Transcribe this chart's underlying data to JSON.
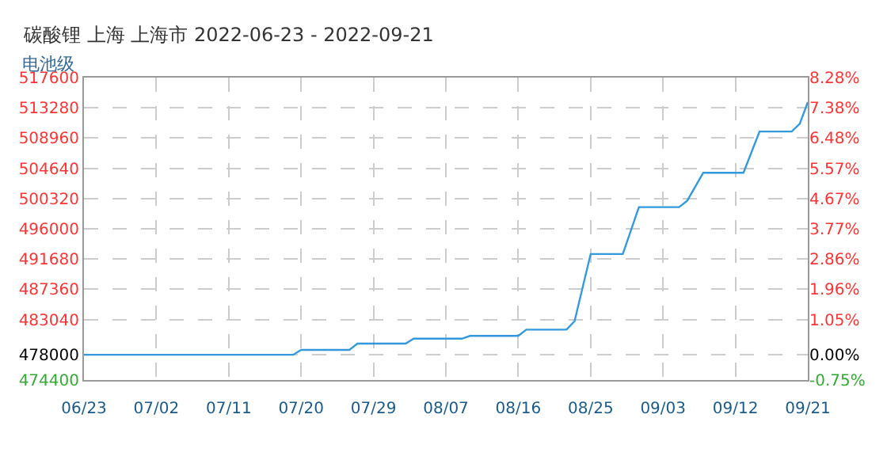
{
  "chart_data": {
    "type": "line",
    "title": "碳酸锂 上海 上海市 2022-06-23 - 2022-09-21",
    "subtitle": "电池级",
    "x": [
      "2022-06-23",
      "2022-07-19",
      "2022-07-20",
      "2022-07-26",
      "2022-07-27",
      "2022-08-02",
      "2022-08-03",
      "2022-08-09",
      "2022-08-10",
      "2022-08-16",
      "2022-08-17",
      "2022-08-22",
      "2022-08-23",
      "2022-08-25",
      "2022-08-29",
      "2022-08-31",
      "2022-09-05",
      "2022-09-06",
      "2022-09-08",
      "2022-09-13",
      "2022-09-15",
      "2022-09-19",
      "2022-09-20",
      "2022-09-21"
    ],
    "values": [
      478000,
      478000,
      478700,
      478700,
      479600,
      479600,
      480300,
      480300,
      480700,
      480700,
      481600,
      481600,
      482800,
      492400,
      492400,
      499100,
      499100,
      500000,
      504000,
      504000,
      509900,
      509900,
      511000,
      514100
    ],
    "color": "#3399dd",
    "xlim": [
      "2022-06-23",
      "2022-09-21"
    ],
    "xticks": [
      {
        "value": "2022-06-23",
        "label": "06/23"
      },
      {
        "value": "2022-07-02",
        "label": "07/02"
      },
      {
        "value": "2022-07-11",
        "label": "07/11"
      },
      {
        "value": "2022-07-20",
        "label": "07/20"
      },
      {
        "value": "2022-07-29",
        "label": "07/29"
      },
      {
        "value": "2022-08-07",
        "label": "08/07"
      },
      {
        "value": "2022-08-16",
        "label": "08/16"
      },
      {
        "value": "2022-08-25",
        "label": "08/25"
      },
      {
        "value": "2022-09-03",
        "label": "09/03"
      },
      {
        "value": "2022-09-12",
        "label": "09/12"
      },
      {
        "value": "2022-09-21",
        "label": "09/21"
      }
    ],
    "ylim": [
      474400,
      517600
    ],
    "yticks": [
      474400,
      478000,
      483040,
      487360,
      491680,
      496000,
      500320,
      504640,
      508960,
      513280,
      517600
    ],
    "y2lim": [
      -0.753,
      8.284
    ],
    "y2ticks": [
      {
        "value": -0.75,
        "label": "-0.75%"
      },
      {
        "value": 0,
        "label": "0.00%"
      },
      {
        "value": 1.05,
        "label": "1.05%"
      },
      {
        "value": 1.96,
        "label": "1.96%"
      },
      {
        "value": 2.86,
        "label": "2.86%"
      },
      {
        "value": 3.77,
        "label": "3.77%"
      },
      {
        "value": 4.67,
        "label": "4.67%"
      },
      {
        "value": 5.57,
        "label": "5.57%"
      },
      {
        "value": 6.48,
        "label": "6.48%"
      },
      {
        "value": 7.38,
        "label": "7.38%"
      },
      {
        "value": 8.28,
        "label": "8.28%"
      }
    ],
    "grid": true
  }
}
